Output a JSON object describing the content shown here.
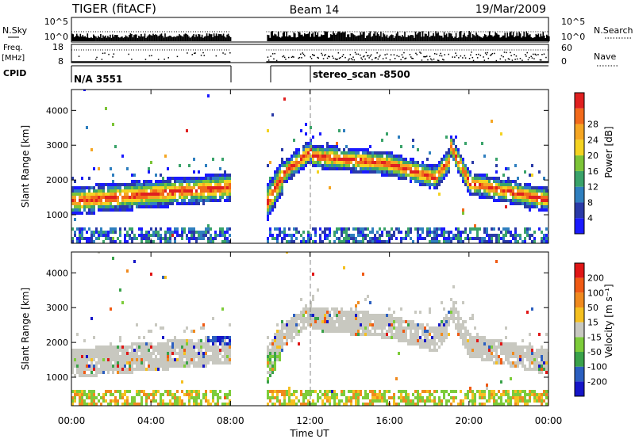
{
  "header": {
    "station": "TIGER (fitACF)",
    "beam": "Beam 14",
    "date": "19/Mar/2009"
  },
  "strips": {
    "nsky_label": "N.Sky",
    "nsearch_label": "N.Search",
    "freq_label_1": "Freq.",
    "freq_label_2": "[MHz]",
    "nave_label": "Nave",
    "cpid_label": "CPID",
    "left_ticks_top": [
      "10^5",
      "10^0"
    ],
    "right_ticks_top": [
      "10^5",
      "10^0"
    ],
    "left_ticks_mid": [
      "18",
      "8"
    ],
    "right_ticks_mid": [
      "60",
      "0"
    ],
    "cpid_left": "N/A 3551",
    "cpid_right": "stereo_scan -8500"
  },
  "x_axis": {
    "label": "Time UT",
    "ticks": [
      "00:00",
      "04:00",
      "08:00",
      "12:00",
      "16:00",
      "20:00",
      "00:00"
    ]
  },
  "chart_data": [
    {
      "type": "heatmap",
      "panel": "power",
      "xlabel": "Time UT",
      "ylabel": "Slant Range [km]",
      "xlim": [
        0,
        24
      ],
      "ylim": [
        180,
        4600
      ],
      "yticks": [
        "1000",
        "2000",
        "3000",
        "4000"
      ],
      "data_gap_hours": [
        8.0,
        9.8
      ],
      "colorbar": {
        "label": "Power [dB]",
        "ticks": [
          "4",
          "8",
          "12",
          "16",
          "20",
          "24",
          "28"
        ],
        "colors": [
          "#1a1aff",
          "#2a3aa8",
          "#2f7fbf",
          "#3aa36a",
          "#7cc437",
          "#f4d321",
          "#f5a623",
          "#f26a1b",
          "#e02020"
        ]
      }
    },
    {
      "type": "heatmap",
      "panel": "velocity",
      "xlabel": "Time UT",
      "ylabel": "Slant Range [km]",
      "xlim": [
        0,
        24
      ],
      "ylim": [
        180,
        4600
      ],
      "yticks": [
        "1000",
        "2000",
        "3000",
        "4000"
      ],
      "data_gap_hours": [
        8.0,
        9.8
      ],
      "colorbar": {
        "label": "Velocity [m s⁻¹]",
        "ticks": [
          "200",
          "100",
          "50",
          "15",
          "-15",
          "-50",
          "-100",
          "-200"
        ],
        "colors": [
          "#1515c8",
          "#2b5fc0",
          "#3aa24a",
          "#7dcc3a",
          "#c8c8c0",
          "#f5c020",
          "#f08a1e",
          "#f05a14",
          "#e01616"
        ]
      }
    }
  ]
}
